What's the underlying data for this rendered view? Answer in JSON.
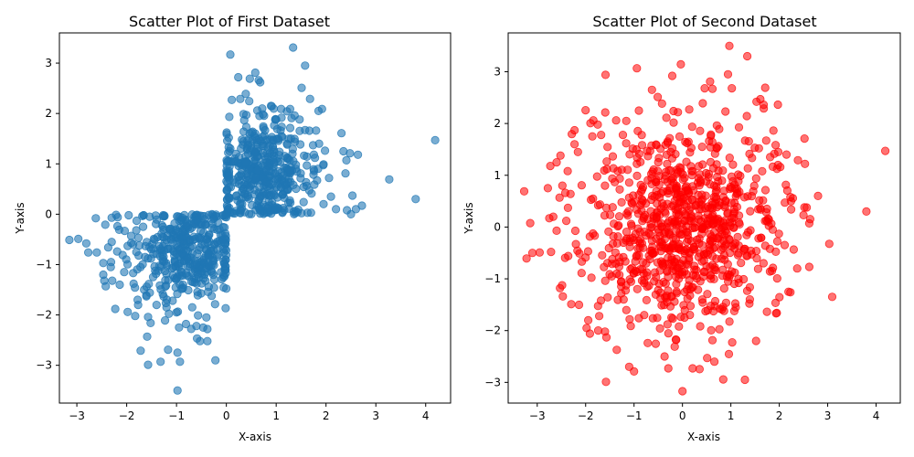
{
  "chart_data": [
    {
      "type": "scatter",
      "title": "Scatter Plot of First Dataset",
      "xlabel": "X-axis",
      "ylabel": "Y-axis",
      "xlim": [
        -3.35,
        4.5
      ],
      "ylim": [
        -3.75,
        3.6
      ],
      "xticks": [
        -3,
        -2,
        -1,
        0,
        1,
        2,
        3,
        4
      ],
      "yticks": [
        -3,
        -2,
        -1,
        0,
        1,
        2,
        3
      ],
      "grid": false,
      "color": "#1f77b4",
      "opacity": 0.6,
      "points": [
        [
          4.19,
          1.47
        ],
        [
          3.8,
          0.3
        ],
        [
          3.27,
          0.69
        ],
        [
          2.72,
          0.17
        ],
        [
          2.6,
          0.1
        ],
        [
          2.5,
          0.0
        ],
        [
          2.53,
          0.37
        ],
        [
          2.42,
          0.08
        ],
        [
          2.64,
          1.18
        ],
        [
          2.48,
          1.21
        ],
        [
          2.41,
          1.07
        ],
        [
          2.35,
          1.25
        ],
        [
          2.39,
          0.81
        ],
        [
          2.31,
          1.61
        ],
        [
          2.06,
          0.72
        ],
        [
          2.1,
          0.35
        ],
        [
          1.92,
          2.09
        ],
        [
          1.85,
          2.05
        ],
        [
          1.68,
          2.29
        ],
        [
          1.58,
          2.95
        ],
        [
          1.34,
          3.31
        ],
        [
          1.51,
          2.51
        ],
        [
          1.47,
          1.88
        ],
        [
          0.08,
          3.17
        ],
        [
          0.58,
          2.81
        ],
        [
          0.65,
          2.66
        ],
        [
          0.68,
          2.62
        ],
        [
          0.24,
          2.72
        ],
        [
          0.47,
          2.69
        ],
        [
          0.39,
          2.39
        ],
        [
          0.28,
          2.29
        ],
        [
          0.11,
          2.27
        ],
        [
          0.72,
          2.1
        ],
        [
          0.62,
          2.06
        ],
        [
          1.1,
          2.09
        ],
        [
          1.28,
          2.09
        ],
        [
          1.37,
          1.96
        ],
        [
          1.58,
          1.67
        ],
        [
          1.8,
          1.66
        ],
        [
          1.74,
          1.37
        ],
        [
          1.98,
          1.26
        ],
        [
          1.86,
          1.4
        ],
        [
          1.95,
          0.99
        ],
        [
          1.76,
          0.86
        ],
        [
          1.82,
          0.67
        ],
        [
          1.71,
          0.41
        ],
        [
          1.95,
          0.2
        ],
        [
          1.55,
          0.24
        ],
        [
          1.38,
          0.02
        ],
        [
          1.26,
          0.11
        ],
        [
          1.7,
          0.03
        ],
        [
          2.2,
          0.1
        ],
        [
          -3.15,
          -0.51
        ],
        [
          -2.97,
          -0.49
        ],
        [
          -2.81,
          -0.58
        ],
        [
          -2.77,
          -0.76
        ],
        [
          -2.6,
          -0.76
        ],
        [
          -2.62,
          -0.08
        ],
        [
          -2.43,
          -0.21
        ],
        [
          -2.37,
          -0.66
        ],
        [
          -2.3,
          -0.55
        ],
        [
          -2.3,
          -0.07
        ],
        [
          -2.18,
          -0.06
        ],
        [
          -2.15,
          -0.31
        ],
        [
          -2.04,
          -0.33
        ],
        [
          -2.47,
          -1.2
        ],
        [
          -2.45,
          -1.32
        ],
        [
          -2.42,
          -1.43
        ],
        [
          -2.29,
          -1.32
        ],
        [
          -2.23,
          -1.88
        ],
        [
          -2.14,
          -1.4
        ],
        [
          -2.05,
          -1.15
        ],
        [
          -1.98,
          -1.94
        ],
        [
          -1.87,
          -1.17
        ],
        [
          -1.86,
          -1.38
        ],
        [
          -1.78,
          -1.7
        ],
        [
          -1.77,
          -1.8
        ],
        [
          -1.83,
          -2.02
        ],
        [
          -1.72,
          -2.71
        ],
        [
          -1.65,
          -1.5
        ],
        [
          -1.6,
          -1.44
        ],
        [
          -1.57,
          -2.04
        ],
        [
          -1.52,
          -2.16
        ],
        [
          -1.59,
          -2.43
        ],
        [
          -1.57,
          -2.99
        ],
        [
          -1.32,
          -2.93
        ],
        [
          -1.17,
          -2.69
        ],
        [
          -0.98,
          -2.75
        ],
        [
          -0.93,
          -2.93
        ],
        [
          -0.98,
          -3.5
        ],
        [
          -0.81,
          -2.18
        ],
        [
          -0.6,
          -2.22
        ],
        [
          -0.38,
          -2.28
        ],
        [
          -0.53,
          -2.52
        ],
        [
          -0.38,
          -2.52
        ],
        [
          -0.22,
          -2.9
        ],
        [
          -0.95,
          -2.25
        ],
        [
          -1.23,
          -2.11
        ],
        [
          -1.0,
          -1.95
        ],
        [
          -1.2,
          -1.85
        ],
        [
          -1.4,
          -1.8
        ],
        [
          -0.4,
          -2.05
        ],
        [
          -2.19,
          -0.74
        ],
        [
          -2.08,
          -0.81
        ],
        [
          -1.98,
          -0.63
        ],
        [
          -1.87,
          -0.6
        ],
        [
          -1.76,
          -0.82
        ],
        [
          -1.63,
          -0.85
        ],
        [
          -1.91,
          -0.43
        ],
        [
          -1.8,
          -0.13
        ],
        [
          -1.67,
          -0.25
        ],
        [
          -1.54,
          -0.05
        ],
        [
          -1.66,
          -0.02
        ],
        [
          -2.47,
          -0.97
        ],
        [
          -2.32,
          -1.05
        ]
      ],
      "clusters": [
        {
          "cx": 0.72,
          "cy": 0.82,
          "sx": 0.48,
          "sy": 0.52,
          "n": 440,
          "xmin": 0.0,
          "ymin": 0.0
        },
        {
          "cx": -0.72,
          "cy": -0.72,
          "sx": 0.5,
          "sy": 0.52,
          "n": 400,
          "xmax": 0.0,
          "ymax": 0.0
        }
      ]
    },
    {
      "type": "scatter",
      "title": "Scatter Plot of Second Dataset",
      "xlabel": "X-axis",
      "ylabel": "Y-axis",
      "xlim": [
        -3.6,
        4.5
      ],
      "ylim": [
        -3.4,
        3.75
      ],
      "xticks": [
        -3,
        -2,
        -1,
        0,
        1,
        2,
        3,
        4
      ],
      "yticks": [
        -3,
        -2,
        -1,
        0,
        1,
        2,
        3
      ],
      "grid": false,
      "color": "#ff0000",
      "opacity": 0.55,
      "points": [
        [
          4.19,
          1.47
        ],
        [
          3.8,
          0.3
        ],
        [
          -3.27,
          0.69
        ],
        [
          -3.1,
          -0.5
        ],
        [
          -2.95,
          -0.49
        ],
        [
          -2.78,
          0.75
        ],
        [
          -2.75,
          0.17
        ],
        [
          -2.67,
          0.2
        ],
        [
          -2.6,
          -0.07
        ],
        [
          -2.53,
          -1.18
        ],
        [
          -2.47,
          -1.34
        ],
        [
          -2.42,
          0.66
        ],
        [
          -2.4,
          0.12
        ],
        [
          -2.36,
          -0.56
        ],
        [
          -2.2,
          -0.33
        ],
        [
          -2.13,
          -0.51
        ],
        [
          -1.95,
          -0.47
        ],
        [
          -1.98,
          -1.95
        ],
        [
          -1.88,
          -0.98
        ],
        [
          -1.72,
          -1.72
        ],
        [
          -1.6,
          -2.02
        ],
        [
          -1.57,
          -2.13
        ],
        [
          -1.58,
          -2.99
        ],
        [
          -1.59,
          2.94
        ],
        [
          -1.0,
          -2.79
        ],
        [
          -0.16,
          -2.31
        ],
        [
          -0.37,
          -2.5
        ],
        [
          -0.13,
          -2.18
        ],
        [
          0.0,
          -3.17
        ],
        [
          0.21,
          -2.73
        ],
        [
          0.66,
          -2.6
        ],
        [
          0.51,
          -2.53
        ],
        [
          1.29,
          -2.95
        ],
        [
          1.52,
          -2.2
        ],
        [
          1.95,
          -1.66
        ],
        [
          2.19,
          -1.25
        ],
        [
          2.23,
          -1.26
        ],
        [
          2.37,
          -0.8
        ],
        [
          2.62,
          -0.77
        ],
        [
          2.5,
          0.23
        ],
        [
          2.52,
          0.38
        ],
        [
          2.62,
          0.07
        ],
        [
          2.8,
          0.6
        ],
        [
          2.53,
          1.22
        ],
        [
          2.15,
          1.4
        ],
        [
          2.02,
          1.16
        ],
        [
          1.98,
          1.45
        ],
        [
          1.73,
          1.67
        ],
        [
          1.58,
          1.52
        ],
        [
          1.68,
          2.29
        ],
        [
          1.61,
          2.47
        ],
        [
          1.53,
          2.42
        ],
        [
          1.71,
          2.69
        ],
        [
          1.34,
          3.3
        ],
        [
          1.02,
          2.68
        ],
        [
          0.97,
          3.5
        ],
        [
          0.94,
          2.95
        ],
        [
          0.57,
          2.81
        ],
        [
          0.62,
          2.67
        ],
        [
          0.46,
          2.68
        ],
        [
          0.42,
          2.39
        ],
        [
          0.14,
          2.27
        ],
        [
          -0.21,
          2.92
        ],
        [
          -0.63,
          2.65
        ],
        [
          -0.9,
          2.25
        ],
        [
          -1.16,
          2.05
        ],
        [
          -1.37,
          2.06
        ],
        [
          -1.84,
          2.06
        ],
        [
          -1.75,
          1.98
        ],
        [
          -1.68,
          1.78
        ],
        [
          -2.23,
          1.6
        ],
        [
          -2.16,
          1.45
        ],
        [
          -2.23,
          1.87
        ],
        [
          -2.52,
          1.38
        ],
        [
          -2.6,
          1.25
        ],
        [
          -2.73,
          1.18
        ],
        [
          -2.37,
          1.08
        ],
        [
          -2.48,
          0.8
        ]
      ],
      "clusters": [
        {
          "cx": 0.05,
          "cy": 0.0,
          "sx": 0.95,
          "sy": 0.97,
          "n": 860
        }
      ]
    }
  ]
}
